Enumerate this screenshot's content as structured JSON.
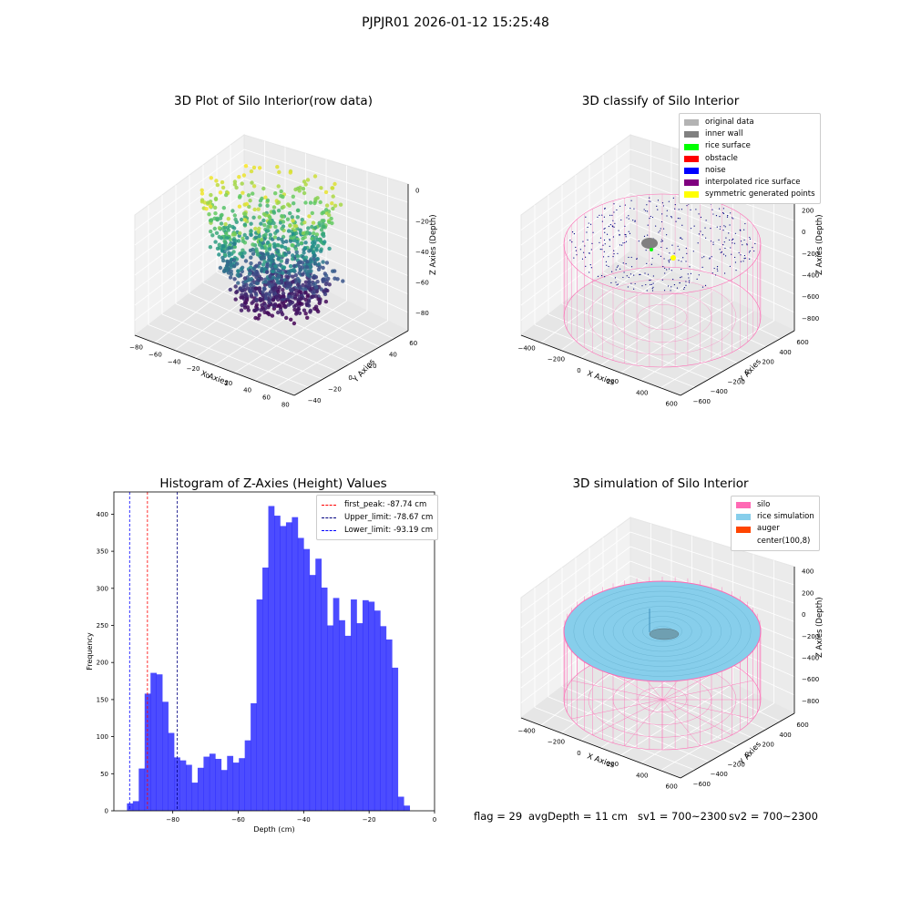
{
  "figure": {
    "suptitle": "PJPJR01 2026-01-12 15:25:48"
  },
  "panels": {
    "p1": {
      "title": "3D Plot of Silo Interior(row data)",
      "xlabel": "X Axies",
      "ylabel": "Y Axies",
      "zlabel": "Z Axies (Depth)",
      "xticks": [
        "−80",
        "−60",
        "−40",
        "−20",
        "0",
        "20",
        "40",
        "60",
        "80"
      ],
      "yticks": [
        "−40",
        "−20",
        "0",
        "20",
        "40",
        "60"
      ],
      "zticks": [
        "0",
        "−20",
        "−40",
        "−60",
        "−80"
      ]
    },
    "p2": {
      "title": "3D classify of Silo Interior",
      "xlabel": "X Axies",
      "ylabel": "Y Axies",
      "zlabel": "Z Axies (Depth)",
      "xticks": [
        "−400",
        "−200",
        "0",
        "200",
        "400",
        "600"
      ],
      "yticks": [
        "−600",
        "−400",
        "−200",
        "0",
        "200",
        "400",
        "600"
      ],
      "zticks": [
        "400",
        "200",
        "0",
        "−200",
        "−400",
        "−600",
        "−800"
      ],
      "legend": [
        {
          "label": "original data",
          "color": "#b3b3b3"
        },
        {
          "label": "inner wall",
          "color": "#808080"
        },
        {
          "label": "rice surface",
          "color": "#00ff00"
        },
        {
          "label": "obstacle",
          "color": "#ff0000"
        },
        {
          "label": "noise",
          "color": "#0000ff"
        },
        {
          "label": "interpolated rice surface",
          "color": "#800080"
        },
        {
          "label": "symmetric generated points",
          "color": "#ffff00"
        }
      ]
    },
    "p4": {
      "title": "3D simulation of Silo Interior",
      "xlabel": "X Axies",
      "ylabel": "Y Axies",
      "zlabel": "Z Axies (Depth)",
      "xticks": [
        "−400",
        "−200",
        "0",
        "200",
        "400",
        "600"
      ],
      "yticks": [
        "−600",
        "−400",
        "−200",
        "0",
        "200",
        "400",
        "600"
      ],
      "zticks": [
        "400",
        "200",
        "0",
        "−200",
        "−400",
        "−600",
        "−800"
      ],
      "legend": [
        {
          "label": "silo",
          "color": "#ff69b4"
        },
        {
          "label": "rice simulation",
          "color": "#87ceeb"
        },
        {
          "label": "auger",
          "color": "#ff4500"
        },
        {
          "label": "center(100,8)",
          "color": "#ffffff"
        }
      ]
    }
  },
  "footer": {
    "flag": "flag = 29",
    "avg_depth": "avgDepth = 11 cm",
    "sv1": "sv1 = 700~2300",
    "sv2": "sv2 = 700~2300"
  },
  "chart_data": [
    {
      "type": "scatter",
      "title": "3D Plot of Silo Interior(row data)",
      "xlabel": "X Axies",
      "ylabel": "Y Axies",
      "zlabel": "Z Axies (Depth)",
      "xlim": [
        -80,
        80
      ],
      "ylim": [
        -40,
        60
      ],
      "zlim": [
        -90,
        0
      ],
      "colormap": "viridis"
    },
    {
      "type": "scatter",
      "title": "3D classify of Silo Interior",
      "xlabel": "X Axies",
      "ylabel": "Y Axies",
      "zlabel": "Z Axies (Depth)",
      "xlim": [
        -400,
        600
      ],
      "ylim": [
        -600,
        600
      ],
      "zlim": [
        -800,
        400
      ],
      "series": [
        {
          "name": "original data"
        },
        {
          "name": "inner wall"
        },
        {
          "name": "rice surface"
        },
        {
          "name": "obstacle"
        },
        {
          "name": "noise"
        },
        {
          "name": "interpolated rice surface"
        },
        {
          "name": "symmetric generated points"
        }
      ]
    },
    {
      "type": "bar",
      "title": "Histogram of Z-Axies (Height) Values",
      "xlabel": "Depth (cm)",
      "ylabel": "Frequency",
      "xlim": [
        -98,
        0
      ],
      "ylim": [
        0,
        430
      ],
      "xticks": [
        -80,
        -60,
        -40,
        -20,
        0
      ],
      "yticks": [
        0,
        50,
        100,
        150,
        200,
        250,
        300,
        350,
        400
      ],
      "bin_start": -94.0,
      "bin_width": 1.8,
      "values": [
        10,
        13,
        57,
        158,
        186,
        184,
        147,
        105,
        72,
        68,
        62,
        38,
        58,
        73,
        77,
        70,
        55,
        74,
        65,
        71,
        95,
        145,
        285,
        328,
        411,
        398,
        384,
        389,
        396,
        368,
        353,
        318,
        340,
        301,
        250,
        287,
        257,
        236,
        285,
        253,
        284,
        282,
        270,
        249,
        231,
        193,
        19,
        7
      ],
      "color": "#0000ff",
      "vlines": [
        {
          "label": "first_peak: -87.74 cm",
          "x": -87.74,
          "color": "#ff0000"
        },
        {
          "label": "Upper_limit: -78.67 cm",
          "x": -78.67,
          "color": "#000080"
        },
        {
          "label": "Lower_limit: -93.19 cm",
          "x": -93.19,
          "color": "#0000ff"
        }
      ]
    },
    {
      "type": "scatter",
      "title": "3D simulation of Silo Interior",
      "xlabel": "X Axies",
      "ylabel": "Y Axies",
      "zlabel": "Z Axies (Depth)",
      "xlim": [
        -400,
        600
      ],
      "ylim": [
        -600,
        600
      ],
      "zlim": [
        -800,
        400
      ],
      "series": [
        {
          "name": "silo"
        },
        {
          "name": "rice simulation"
        },
        {
          "name": "auger"
        },
        {
          "name": "center(100,8)"
        }
      ]
    }
  ]
}
